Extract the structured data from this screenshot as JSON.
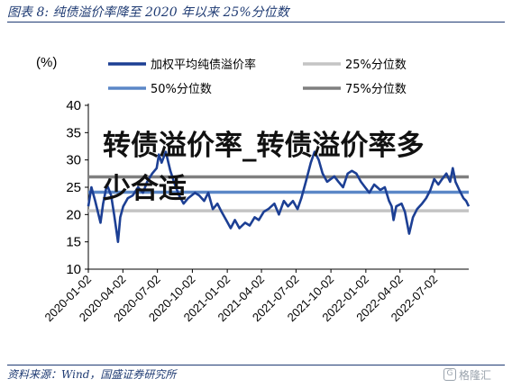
{
  "header": {
    "figure_title": "图表 8:  纯债溢价率降至 2020 年以来 25%分位数"
  },
  "footer": {
    "source": "资料来源：Wind，国盛证券研究所",
    "watermark": "格隆汇",
    "watermark_icon": "g-logo-icon"
  },
  "overlay": {
    "text": "转债溢价率_转债溢价率多少合适"
  },
  "chart_data": {
    "type": "line",
    "unit_label": "(%)",
    "ylim": [
      10,
      40
    ],
    "yticks": [
      10,
      15,
      20,
      25,
      30,
      35,
      40
    ],
    "x_start": "2020-01-02",
    "x_end": "2022-09-30",
    "xticks": [
      "2020-01-02",
      "2020-04-02",
      "2020-07-02",
      "2020-10-02",
      "2021-01-02",
      "2021-04-02",
      "2021-07-02",
      "2021-10-02",
      "2022-01-02",
      "2022-04-02",
      "2022-07-02"
    ],
    "grid": false,
    "legend_placement": "top",
    "series": [
      {
        "name": "加权平均纯债溢价率",
        "color": "#1c3f94",
        "points": [
          [
            "2020-01-02",
            21.5
          ],
          [
            "2020-01-10",
            25.0
          ],
          [
            "2020-01-20",
            22.5
          ],
          [
            "2020-02-03",
            18.5
          ],
          [
            "2020-02-10",
            22.0
          ],
          [
            "2020-02-20",
            25.5
          ],
          [
            "2020-03-02",
            23.5
          ],
          [
            "2020-03-10",
            20.0
          ],
          [
            "2020-03-16",
            17.0
          ],
          [
            "2020-03-20",
            15.0
          ],
          [
            "2020-03-26",
            19.5
          ],
          [
            "2020-04-03",
            21.5
          ],
          [
            "2020-04-15",
            23.0
          ],
          [
            "2020-04-28",
            23.5
          ],
          [
            "2020-05-12",
            25.0
          ],
          [
            "2020-05-25",
            24.0
          ],
          [
            "2020-06-05",
            26.0
          ],
          [
            "2020-06-18",
            27.5
          ],
          [
            "2020-06-30",
            28.5
          ],
          [
            "2020-07-06",
            31.0
          ],
          [
            "2020-07-13",
            29.5
          ],
          [
            "2020-07-24",
            31.5
          ],
          [
            "2020-08-05",
            28.0
          ],
          [
            "2020-08-17",
            25.5
          ],
          [
            "2020-08-28",
            23.5
          ],
          [
            "2020-09-09",
            22.0
          ],
          [
            "2020-09-21",
            23.0
          ],
          [
            "2020-10-09",
            24.0
          ],
          [
            "2020-10-20",
            23.5
          ],
          [
            "2020-11-02",
            22.5
          ],
          [
            "2020-11-13",
            24.0
          ],
          [
            "2020-11-25",
            21.0
          ],
          [
            "2020-12-07",
            22.0
          ],
          [
            "2020-12-18",
            20.5
          ],
          [
            "2020-12-30",
            19.0
          ],
          [
            "2021-01-11",
            17.5
          ],
          [
            "2021-01-22",
            19.0
          ],
          [
            "2021-02-03",
            17.5
          ],
          [
            "2021-02-18",
            18.5
          ],
          [
            "2021-03-02",
            18.0
          ],
          [
            "2021-03-15",
            19.5
          ],
          [
            "2021-03-26",
            19.0
          ],
          [
            "2021-04-08",
            20.5
          ],
          [
            "2021-04-20",
            21.0
          ],
          [
            "2021-05-06",
            22.0
          ],
          [
            "2021-05-18",
            20.0
          ],
          [
            "2021-05-31",
            22.5
          ],
          [
            "2021-06-11",
            21.5
          ],
          [
            "2021-06-24",
            22.5
          ],
          [
            "2021-07-06",
            21.0
          ],
          [
            "2021-07-16",
            23.0
          ],
          [
            "2021-07-28",
            26.0
          ],
          [
            "2021-08-10",
            29.5
          ],
          [
            "2021-08-20",
            31.5
          ],
          [
            "2021-08-31",
            30.0
          ],
          [
            "2021-09-10",
            27.5
          ],
          [
            "2021-09-22",
            26.0
          ],
          [
            "2021-10-11",
            27.0
          ],
          [
            "2021-10-22",
            26.0
          ],
          [
            "2021-11-03",
            25.0
          ],
          [
            "2021-11-15",
            27.5
          ],
          [
            "2021-11-26",
            28.0
          ],
          [
            "2021-12-08",
            27.5
          ],
          [
            "2021-12-20",
            26.0
          ],
          [
            "2021-12-31",
            25.0
          ],
          [
            "2022-01-11",
            24.0
          ],
          [
            "2022-01-24",
            25.5
          ],
          [
            "2022-02-09",
            24.5
          ],
          [
            "2022-02-21",
            25.0
          ],
          [
            "2022-03-04",
            22.5
          ],
          [
            "2022-03-11",
            21.5
          ],
          [
            "2022-03-16",
            19.0
          ],
          [
            "2022-03-23",
            21.5
          ],
          [
            "2022-04-06",
            22.0
          ],
          [
            "2022-04-15",
            20.5
          ],
          [
            "2022-04-26",
            16.5
          ],
          [
            "2022-05-06",
            19.5
          ],
          [
            "2022-05-17",
            21.0
          ],
          [
            "2022-05-30",
            22.0
          ],
          [
            "2022-06-10",
            23.0
          ],
          [
            "2022-06-21",
            24.5
          ],
          [
            "2022-07-01",
            26.5
          ],
          [
            "2022-07-12",
            25.5
          ],
          [
            "2022-07-22",
            26.5
          ],
          [
            "2022-08-02",
            27.5
          ],
          [
            "2022-08-12",
            26.0
          ],
          [
            "2022-08-19",
            28.5
          ],
          [
            "2022-08-26",
            26.0
          ],
          [
            "2022-09-05",
            24.5
          ],
          [
            "2022-09-16",
            23.0
          ],
          [
            "2022-09-23",
            22.5
          ],
          [
            "2022-09-30",
            21.5
          ]
        ]
      },
      {
        "name": "25%分位数",
        "color": "#c4c4c4",
        "value": 20.7
      },
      {
        "name": "50%分位数",
        "color": "#5b87c7",
        "value": 24.1
      },
      {
        "name": "75%分位数",
        "color": "#7f7f7f",
        "value": 26.9
      }
    ]
  }
}
